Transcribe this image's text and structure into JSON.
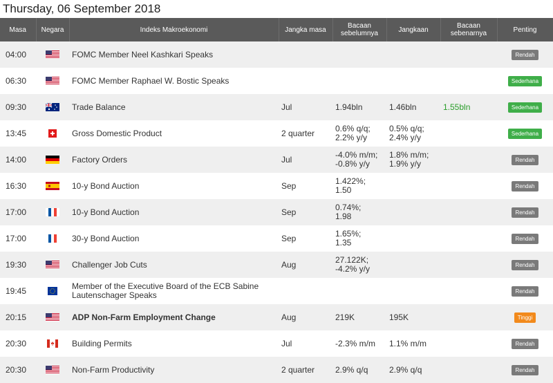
{
  "date": "Thursday, 06 September 2018",
  "headers": {
    "time": "Masa",
    "country": "Negara",
    "indicator": "Indeks Makroekonomi",
    "period": "Jangka masa",
    "previous": "Bacaan sebelumnya",
    "forecast": "Jangkaan",
    "actual": "Bacaan sebenarnya",
    "importance": "Penting"
  },
  "rows": [
    {
      "time": "04:00",
      "flag": "us",
      "indicator": "FOMC Member Neel Kashkari Speaks",
      "period": "",
      "previous": "",
      "forecast": "",
      "actual": "",
      "importance": "Rendah",
      "level": "low",
      "bold": false
    },
    {
      "time": "06:30",
      "flag": "us",
      "indicator": "FOMC Member Raphael W. Bostic Speaks",
      "period": "",
      "previous": "",
      "forecast": "",
      "actual": "",
      "importance": "Sederhana",
      "level": "med",
      "bold": false
    },
    {
      "time": "09:30",
      "flag": "au",
      "indicator": "Trade Balance",
      "period": "Jul",
      "previous": "1.94bln",
      "forecast": "1.46bln",
      "actual": "1.55bln",
      "importance": "Sederhana",
      "level": "med",
      "bold": false
    },
    {
      "time": "13:45",
      "flag": "ch",
      "indicator": "Gross Domestic Product",
      "period": "2 quarter",
      "previous": "0.6% q/q;\n2.2% y/y",
      "forecast": "0.5% q/q;\n2.4% y/y",
      "actual": "",
      "importance": "Sederhana",
      "level": "med",
      "bold": false
    },
    {
      "time": "14:00",
      "flag": "de",
      "indicator": "Factory Orders",
      "period": "Jul",
      "previous": "-4.0% m/m;\n-0.8% y/y",
      "forecast": "1.8% m/m;\n1.9% y/y",
      "actual": "",
      "importance": "Rendah",
      "level": "low",
      "bold": false
    },
    {
      "time": "16:30",
      "flag": "es",
      "indicator": "10-y Bond Auction",
      "period": "Sep",
      "previous": "1.422%;\n1.50",
      "forecast": "",
      "actual": "",
      "importance": "Rendah",
      "level": "low",
      "bold": false
    },
    {
      "time": "17:00",
      "flag": "fr",
      "indicator": "10-y Bond Auction",
      "period": "Sep",
      "previous": "0.74%;\n1.98",
      "forecast": "",
      "actual": "",
      "importance": "Rendah",
      "level": "low",
      "bold": false
    },
    {
      "time": "17:00",
      "flag": "fr",
      "indicator": "30-y Bond Auction",
      "period": "Sep",
      "previous": "1.65%;\n1.35",
      "forecast": "",
      "actual": "",
      "importance": "Rendah",
      "level": "low",
      "bold": false
    },
    {
      "time": "19:30",
      "flag": "us",
      "indicator": "Challenger Job Cuts",
      "period": "Aug",
      "previous": "27.122K;\n-4.2% y/y",
      "forecast": "",
      "actual": "",
      "importance": "Rendah",
      "level": "low",
      "bold": false
    },
    {
      "time": "19:45",
      "flag": "eu",
      "indicator": "Member of the Executive Board of the ECB Sabine Lautenschager Speaks",
      "period": "",
      "previous": "",
      "forecast": "",
      "actual": "",
      "importance": "Rendah",
      "level": "low",
      "bold": false
    },
    {
      "time": "20:15",
      "flag": "us",
      "indicator": "ADP Non-Farm Employment Change",
      "period": "Aug",
      "previous": "219K",
      "forecast": "195K",
      "actual": "",
      "importance": "Tinggi",
      "level": "high",
      "bold": true
    },
    {
      "time": "20:30",
      "flag": "ca",
      "indicator": "Building Permits",
      "period": "Jul",
      "previous": "-2.3% m/m",
      "forecast": "1.1% m/m",
      "actual": "",
      "importance": "Rendah",
      "level": "low",
      "bold": false
    },
    {
      "time": "20:30",
      "flag": "us",
      "indicator": "Non-Farm Productivity",
      "period": "2 quarter",
      "previous": "2.9% q/q",
      "forecast": "2.9% q/q",
      "actual": "",
      "importance": "Rendah",
      "level": "low",
      "bold": false
    }
  ],
  "colors": {
    "header_bg": "#5a5a5a",
    "row_alt": "#efefef",
    "low": "#7a7a7a",
    "med": "#3fae49",
    "high": "#f28a1c",
    "actual": "#2a9d2a"
  }
}
